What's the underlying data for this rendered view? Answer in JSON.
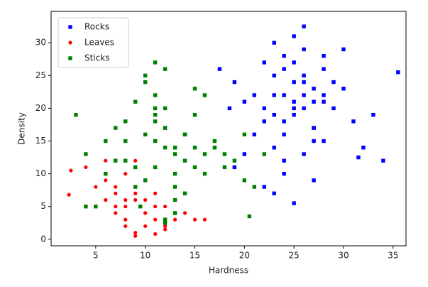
{
  "chart_data": {
    "type": "scatter",
    "xlabel": "Hardness",
    "ylabel": "Density",
    "xlim": [
      0.5,
      36.3
    ],
    "ylim": [
      -1,
      34.8
    ],
    "xticks": [
      5,
      10,
      15,
      20,
      25,
      30,
      35
    ],
    "yticks": [
      0,
      5,
      10,
      15,
      20,
      25,
      30
    ],
    "legend": "upper left",
    "series": [
      {
        "name": "Rocks",
        "color": "#0000ff",
        "marker": "square",
        "x": [
          25,
          24,
          26,
          23,
          27,
          22,
          28,
          25,
          24,
          26,
          21,
          29,
          25,
          23,
          27,
          20,
          30,
          24,
          26,
          22,
          28,
          25,
          19,
          31,
          23,
          27,
          24,
          26,
          25,
          21,
          29,
          22,
          28,
          18.5,
          32,
          25,
          24,
          26,
          27,
          23,
          33,
          17.5,
          34,
          35.5,
          30,
          20,
          24,
          26,
          25,
          23,
          27,
          22,
          28,
          31.5,
          19,
          28,
          23,
          26,
          24,
          27
        ],
        "values": [
          21,
          22,
          20,
          19,
          23,
          18,
          21,
          24,
          16,
          25,
          22,
          20,
          27,
          14,
          17,
          21,
          23,
          12,
          29,
          20,
          26,
          19,
          24,
          18,
          30,
          15,
          10,
          13,
          31,
          16,
          24,
          8,
          22,
          20,
          14,
          5.5,
          28,
          22,
          9,
          25,
          19,
          26,
          12,
          25.5,
          29,
          13,
          18,
          24,
          20,
          22,
          17,
          27,
          15,
          12.5,
          11,
          28,
          7,
          32.5,
          26,
          21
        ]
      },
      {
        "name": "Leaves",
        "color": "#ff0000",
        "marker": "circle",
        "x": [
          9,
          8,
          10,
          7,
          11,
          9,
          8,
          12,
          6,
          10,
          9,
          7,
          13,
          8,
          11,
          10,
          5,
          14,
          9,
          6,
          12,
          8,
          10,
          7,
          11,
          2.5,
          2.3,
          4,
          15,
          9,
          10,
          8,
          12,
          7,
          11,
          6,
          13,
          9,
          14,
          16
        ],
        "values": [
          6,
          5,
          4,
          7,
          3,
          8,
          2,
          5,
          9,
          6,
          1,
          4,
          3,
          10,
          7,
          2,
          8,
          4,
          12,
          6,
          1.5,
          3,
          9,
          5,
          0.8,
          10.5,
          6.8,
          11,
          3,
          7,
          4,
          6,
          2,
          8,
          5,
          12,
          6,
          0.5,
          7,
          3
        ]
      },
      {
        "name": "Sticks",
        "color": "#008000",
        "marker": "square",
        "x": [
          12,
          11,
          13,
          10,
          14,
          12,
          9,
          15,
          11,
          13,
          8,
          16,
          12,
          10,
          14,
          7,
          17,
          11,
          13,
          9,
          15,
          12,
          6,
          18,
          10,
          14,
          11,
          13,
          12,
          8,
          16,
          9,
          15,
          5,
          19,
          12,
          11,
          13,
          10,
          14,
          4,
          20,
          3,
          21,
          22,
          11,
          7,
          17,
          12,
          18,
          4,
          20,
          6,
          9.5,
          16,
          13,
          8,
          15,
          20.5,
          11
        ],
        "values": [
          14,
          15,
          13,
          16,
          12,
          17,
          11,
          14,
          18,
          10,
          15,
          13,
          20,
          9,
          16,
          12,
          14,
          19,
          8,
          21,
          11,
          17,
          15,
          13,
          24,
          7,
          22,
          6,
          26,
          18,
          10,
          8,
          23,
          5,
          12,
          3,
          20,
          14,
          25,
          16,
          5,
          9,
          19,
          8,
          13,
          27,
          17,
          15,
          2.5,
          11,
          13,
          16,
          10,
          5,
          22,
          4,
          12,
          19,
          3.5,
          11
        ]
      }
    ]
  }
}
